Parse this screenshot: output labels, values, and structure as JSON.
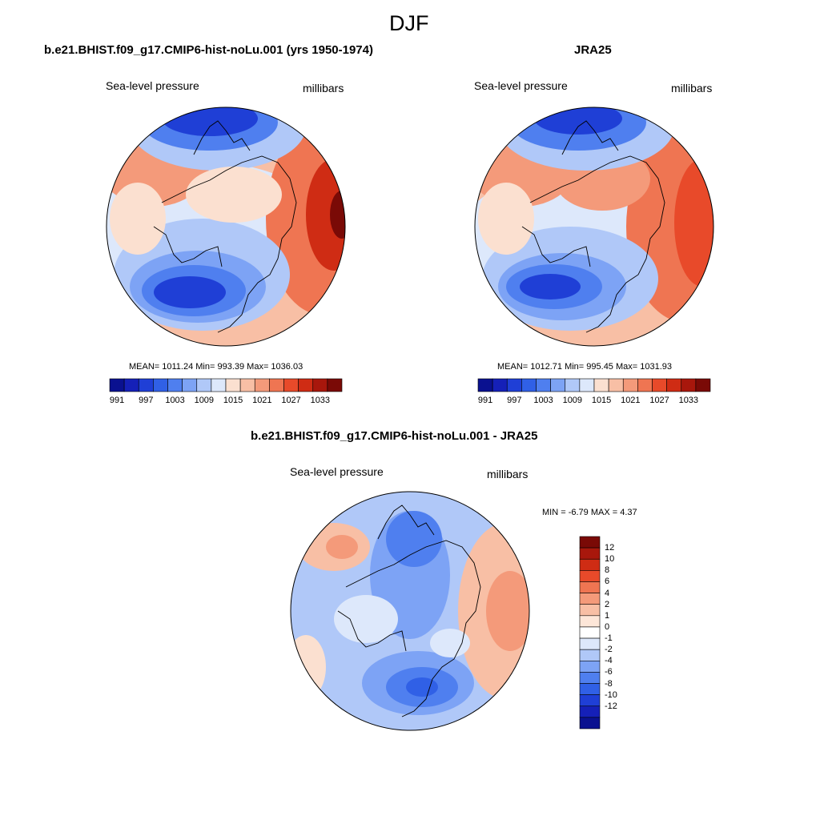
{
  "figure": {
    "season": "DJF"
  },
  "panels": [
    {
      "title": "b.e21.BHIST.f09_g17.CMIP6-hist-noLu.001 (yrs 1950-1974)",
      "variable": "Sea-level pressure",
      "units": "millibars",
      "stats": "MEAN= 1011.24  Min= 993.39  Max= 1036.03"
    },
    {
      "title": "JRA25",
      "variable": "Sea-level pressure",
      "units": "millibars",
      "stats": "MEAN= 1012.71  Min= 995.45  Max= 1031.93"
    },
    {
      "title": "b.e21.BHIST.f09_g17.CMIP6-hist-noLu.001 - JRA25",
      "variable": "Sea-level pressure",
      "units": "millibars",
      "stats": "MIN =  -6.79 MAX =   4.37"
    }
  ],
  "colorbar_abs": {
    "colors": [
      "#0a1190",
      "#1520b8",
      "#1f3fd6",
      "#3060e6",
      "#4f7fef",
      "#7da3f5",
      "#b0c8f8",
      "#dde8fb",
      "#fbe0d0",
      "#f8bfa5",
      "#f49a7a",
      "#ef7552",
      "#e84a2a",
      "#cf2c14",
      "#a8170c",
      "#7a0a06"
    ],
    "labels": [
      "991",
      "997",
      "1003",
      "1009",
      "1015",
      "1021",
      "1027",
      "1033"
    ]
  },
  "colorbar_diff": {
    "colors": [
      "#7a0a06",
      "#a8170c",
      "#cf2c14",
      "#e84a2a",
      "#ef7552",
      "#f49a7a",
      "#f8bfa5",
      "#fde6d8",
      "#ffffff",
      "#dde8fb",
      "#b0c8f8",
      "#7da3f5",
      "#4f7fef",
      "#3060e6",
      "#1f3fd6",
      "#1520b8",
      "#0a1190"
    ],
    "labels": [
      "12",
      "10",
      "8",
      "6",
      "4",
      "2",
      "1",
      "0",
      "-1",
      "-2",
      "-4",
      "-6",
      "-8",
      "-10",
      "-12"
    ]
  },
  "colors": {
    "coast": "#000000",
    "blue_deep": "#1f3fd6",
    "red_deep": "#cf2c14"
  }
}
